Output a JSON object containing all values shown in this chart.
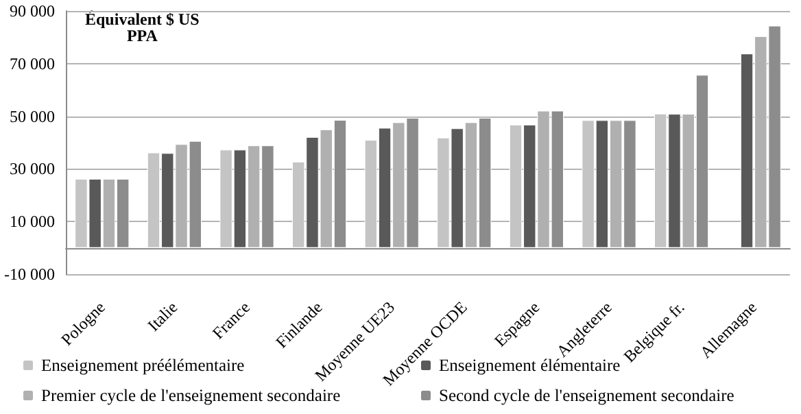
{
  "chart_data": {
    "type": "bar",
    "categories": [
      "Pologne",
      "Italie",
      "France",
      "Finlande",
      "Moyenne UE23",
      "Moyenne OCDE",
      "Espagne",
      "Angleterre",
      "Belgique fr.",
      "Allemagne"
    ],
    "series": [
      {
        "name": "Enseignement préélémentaire",
        "color": "#c4c4c4",
        "values": [
          26200,
          36200,
          37300,
          32700,
          41000,
          41900,
          46800,
          48500,
          51000,
          null
        ]
      },
      {
        "name": "Enseignement élémentaire",
        "color": "#595959",
        "values": [
          26200,
          36000,
          37300,
          42100,
          45600,
          45400,
          46800,
          48500,
          50900,
          73800
        ]
      },
      {
        "name": "Premier cycle de l'enseignement secondaire",
        "color": "#b0b0b0",
        "values": [
          26200,
          39400,
          38900,
          45000,
          47700,
          47700,
          52100,
          48500,
          50900,
          80400
        ]
      },
      {
        "name": "Second cycle de l'enseignement secondaire",
        "color": "#8c8c8c",
        "values": [
          26200,
          40600,
          38900,
          48600,
          49400,
          49400,
          52100,
          48500,
          65700,
          84400
        ]
      }
    ],
    "ylim": [
      -10000,
      90000
    ],
    "yticks": [
      {
        "value": -10000,
        "label": "-10 000"
      },
      {
        "value": 10000,
        "label": "10 000"
      },
      {
        "value": 30000,
        "label": "30 000"
      },
      {
        "value": 50000,
        "label": "50 000"
      },
      {
        "value": 70000,
        "label": "70 000"
      },
      {
        "value": 90000,
        "label": "90 000"
      }
    ],
    "annotations": [
      "Équivalent $ US\nPPA"
    ],
    "grid": "y",
    "legend": "bottom"
  }
}
